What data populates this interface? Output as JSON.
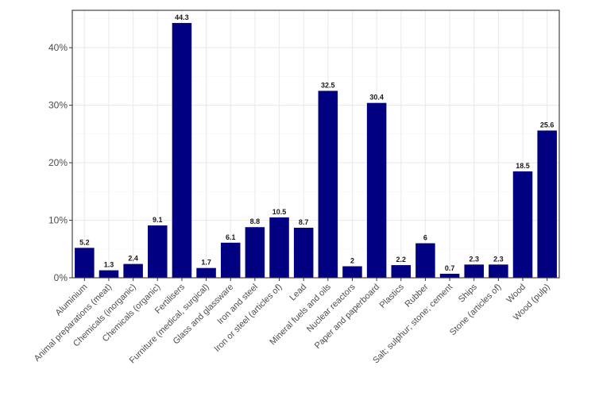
{
  "chart_data": {
    "type": "bar",
    "title": "",
    "xlabel": "",
    "ylabel": "",
    "categories": [
      "Aluminium",
      "Animal preparations (meat)",
      "Chemicals (inorganic)",
      "Chemicals (organic)",
      "Fertilisers",
      "Furniture (medical, surgical)",
      "Glass and glassware",
      "Iron and steel",
      "Iron or steel (articles of)",
      "Lead",
      "Mineral fuels and oils",
      "Nuclear reactors",
      "Paper and paperboard",
      "Plastics",
      "Rubber",
      "Salt; sulphur; stone; cement",
      "Ships",
      "Stone (articles of)",
      "Wood",
      "Wood (pulp)"
    ],
    "values": [
      5.2,
      1.3,
      2.4,
      9.1,
      44.3,
      1.7,
      6.1,
      8.8,
      10.5,
      8.7,
      32.5,
      2,
      30.4,
      2.2,
      6,
      0.7,
      2.3,
      2.3,
      18.5,
      25.6
    ],
    "value_labels": [
      "5.2",
      "1.3",
      "2.4",
      "9.1",
      "44.3",
      "1.7",
      "6.1",
      "8.8",
      "10.5",
      "8.7",
      "32.5",
      "2",
      "30.4",
      "2.2",
      "6",
      "0.7",
      "2.3",
      "2.3",
      "18.5",
      "25.6"
    ],
    "y_ticks": [
      0,
      10,
      20,
      30,
      40
    ],
    "y_tick_labels": [
      "0%",
      "10%",
      "20%",
      "30%",
      "40%"
    ],
    "ylim": [
      0,
      46.5
    ],
    "grid": true,
    "legend": "none",
    "colors": {
      "bar": "#000080",
      "grid_major": "#ebebeb",
      "grid_minor": "#f5f5f5",
      "panel_border": "#333333",
      "axis_text": "#4d4d4d"
    }
  }
}
